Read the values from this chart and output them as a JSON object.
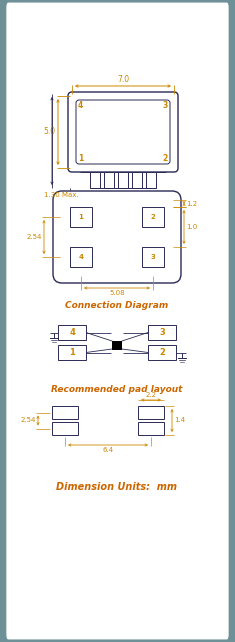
{
  "bg_color": "#6e9097",
  "panel_color": "#ffffff",
  "dim_color": "#cc8800",
  "line_color": "#2a2a55",
  "figsize": [
    2.35,
    6.42
  ],
  "dpi": 100,
  "sections": {
    "top_view": {
      "label_7": "7.0",
      "label_5": "5.0",
      "label_130": "1.30 Max."
    },
    "bottom_view": {
      "label_12": "1.2",
      "label_10": "1.0",
      "label_254": "2.54",
      "label_508": "5.08"
    },
    "connection": {
      "label": "Connection Diagram"
    },
    "pad_layout": {
      "label": "Recommended pad layout",
      "label_22": "2.2",
      "label_14": "1.4",
      "label_254": "2.54",
      "label_64": "6.4"
    },
    "footer": {
      "label": "Dimension Units:  mm"
    }
  }
}
